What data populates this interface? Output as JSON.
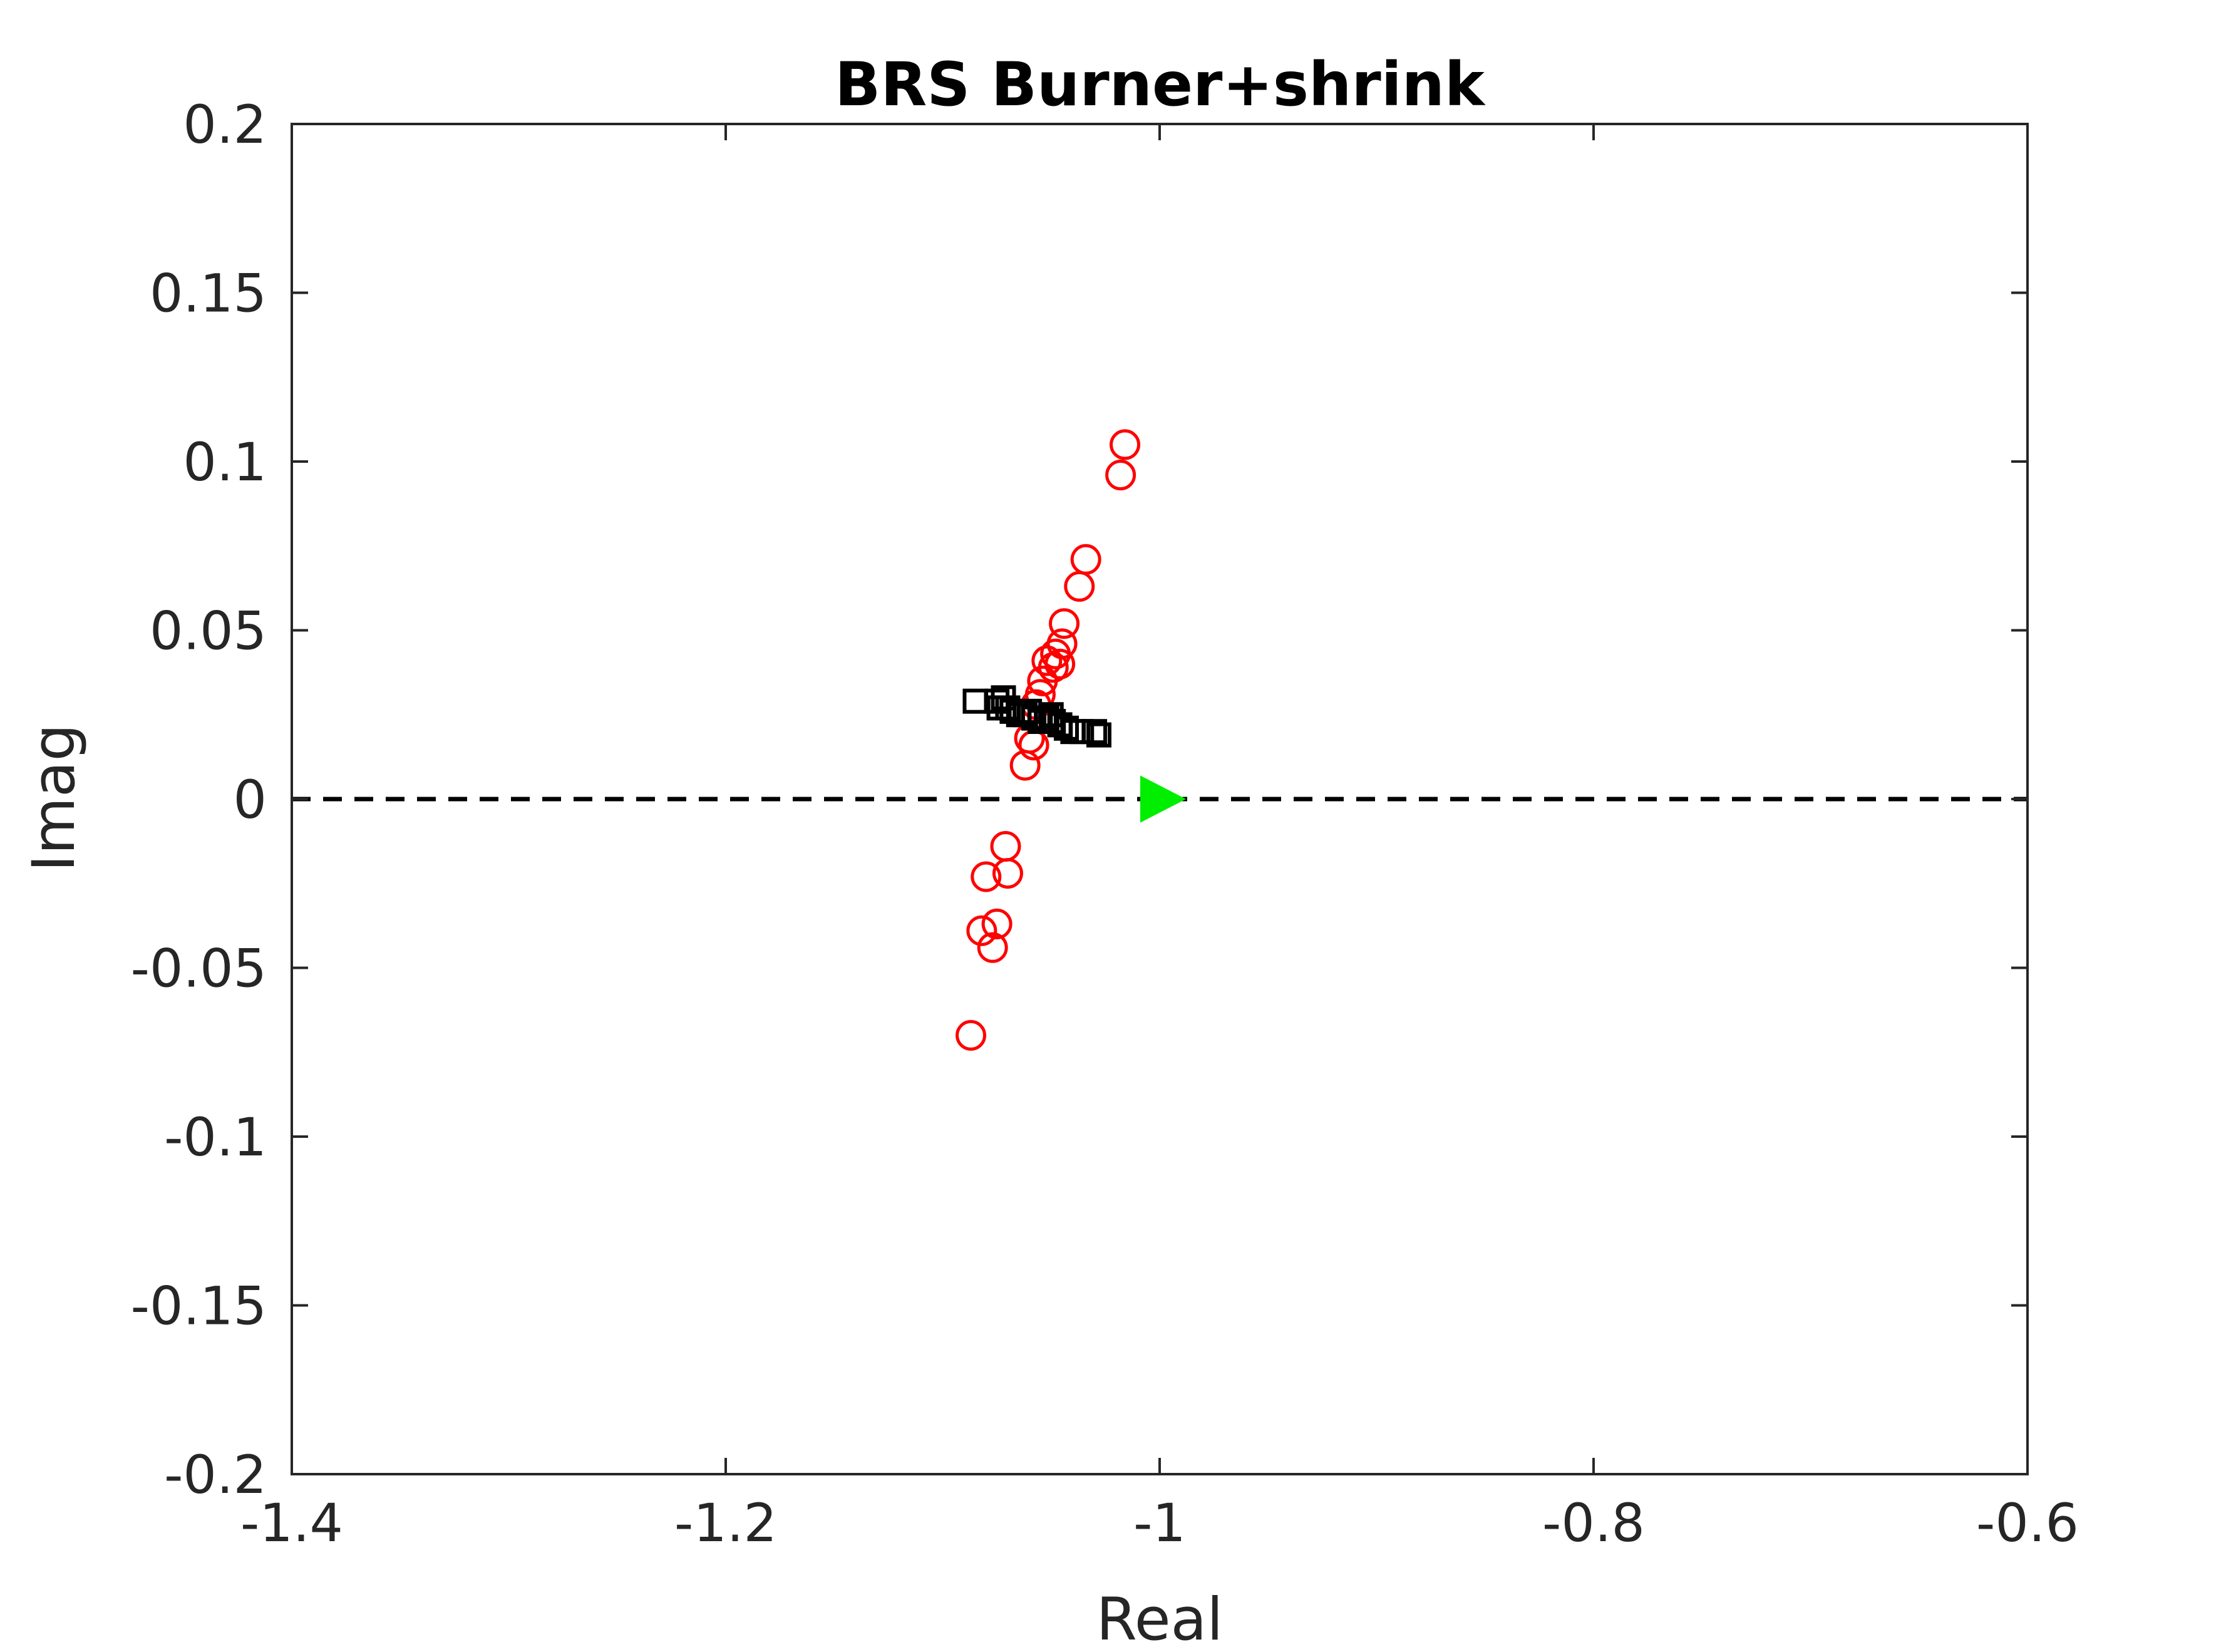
{
  "chart_data": {
    "type": "scatter",
    "title": "BRS Burner+shrink",
    "xlabel": "Real",
    "ylabel": "Imag",
    "xlim": [
      -1.4,
      -0.6
    ],
    "ylim": [
      -0.2,
      0.2
    ],
    "xticks": [
      -1.4,
      -1.2,
      -1.0,
      -0.8,
      -0.6
    ],
    "xtick_labels": [
      "-1.4",
      "-1.2",
      "-1",
      "-0.8",
      "-0.6"
    ],
    "yticks": [
      0.2,
      0.15,
      0.1,
      0.05,
      0.0,
      -0.05,
      -0.1,
      -0.15,
      -0.2
    ],
    "ytick_labels": [
      "0.2",
      "0.15",
      "0.1",
      "0.05",
      "0",
      "-0.05",
      "-0.1",
      "-0.15",
      "-0.2"
    ],
    "grid": false,
    "reference_line": {
      "y": 0,
      "style": "dashed",
      "color": "#000000"
    },
    "series": [
      {
        "marker": "circle",
        "color": "#ff0000",
        "points": [
          [
            -1.016,
            0.105
          ],
          [
            -1.018,
            0.096
          ],
          [
            -1.034,
            0.071
          ],
          [
            -1.037,
            0.063
          ],
          [
            -1.044,
            0.052
          ],
          [
            -1.045,
            0.046
          ],
          [
            -1.048,
            0.043
          ],
          [
            -1.052,
            0.041
          ],
          [
            -1.049,
            0.039
          ],
          [
            -1.046,
            0.04
          ],
          [
            -1.054,
            0.035
          ],
          [
            -1.055,
            0.031
          ],
          [
            -1.057,
            0.028
          ],
          [
            -1.06,
            0.018
          ],
          [
            -1.058,
            0.016
          ],
          [
            -1.062,
            0.01
          ],
          [
            -1.071,
            -0.014
          ],
          [
            -1.07,
            -0.022
          ],
          [
            -1.08,
            -0.023
          ],
          [
            -1.075,
            -0.037
          ],
          [
            -1.082,
            -0.039
          ],
          [
            -1.077,
            -0.044
          ],
          [
            -1.087,
            -0.07
          ]
        ]
      },
      {
        "marker": "square",
        "color": "#000000",
        "points": [
          [
            -1.085,
            0.029
          ],
          [
            -1.075,
            0.029
          ],
          [
            -1.072,
            0.03
          ],
          [
            -1.07,
            0.027
          ],
          [
            -1.068,
            0.026
          ],
          [
            -1.065,
            0.025
          ],
          [
            -1.062,
            0.025
          ],
          [
            -1.058,
            0.024
          ],
          [
            -1.055,
            0.023
          ],
          [
            -1.052,
            0.024
          ],
          [
            -1.049,
            0.023
          ],
          [
            -1.046,
            0.022
          ],
          [
            -1.043,
            0.021
          ],
          [
            -1.04,
            0.02
          ],
          [
            -1.036,
            0.02
          ],
          [
            -1.03,
            0.02
          ],
          [
            -1.028,
            0.019
          ],
          [
            -1.074,
            0.027
          ],
          [
            -1.06,
            0.026
          ],
          [
            -1.05,
            0.025
          ]
        ]
      },
      {
        "marker": "triangle-right",
        "color": "#00ee00",
        "points": [
          [
            -1.0,
            0.0
          ]
        ]
      }
    ]
  }
}
